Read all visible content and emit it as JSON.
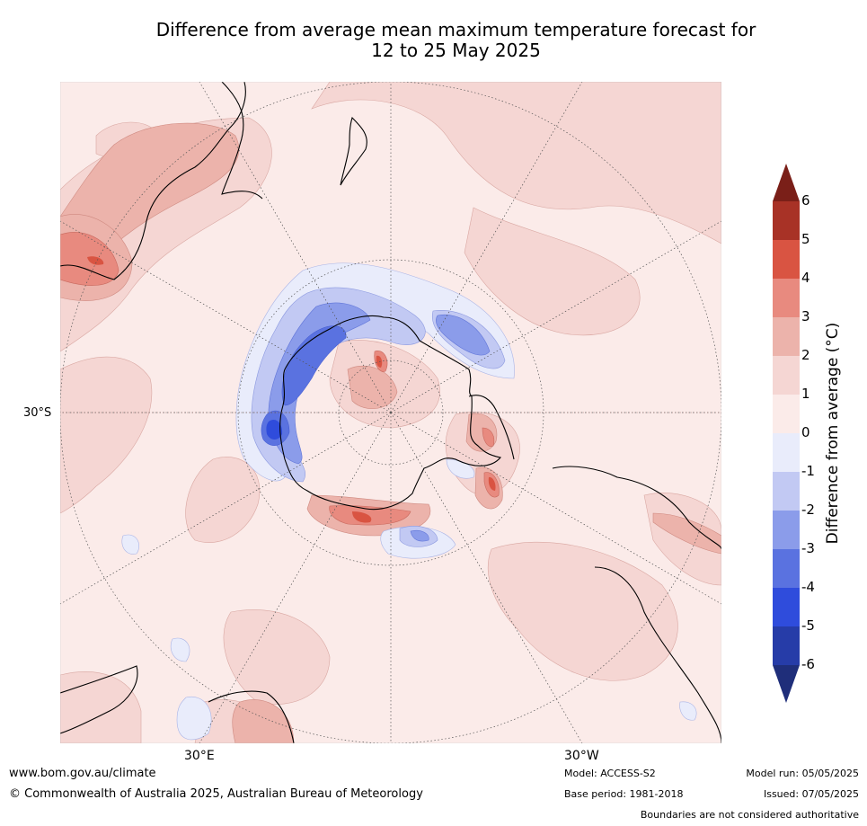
{
  "title": {
    "line1": "Difference from average mean maximum temperature forecast for",
    "line2": "12 to 25 May 2025"
  },
  "map": {
    "projection": "south-polar stereographic",
    "lat_label": "30°S",
    "lon_labels": [
      "30°E",
      "30°W"
    ]
  },
  "colorbar": {
    "title": "Difference from average (°C)",
    "ticks": [
      "6",
      "5",
      "4",
      "3",
      "2",
      "1",
      "0",
      "-1",
      "-2",
      "-3",
      "-4",
      "-5",
      "-6"
    ],
    "colors": [
      "#7a1f18",
      "#a83226",
      "#d95442",
      "#e88a7f",
      "#ecb3ab",
      "#f5d6d3",
      "#fbebe9",
      "#e9ecfb",
      "#c2c9f3",
      "#8b9cea",
      "#5a72e0",
      "#2f4cdc",
      "#263ca8",
      "#1f2e7a"
    ]
  },
  "footer": {
    "website": "www.bom.gov.au/climate",
    "copyright": "© Commonwealth of Australia 2025, Australian Bureau of Meteorology",
    "model": "Model: ACCESS-S2",
    "base_period": "Base period: 1981-2018",
    "model_run": "Model run: 05/05/2025",
    "issued": "Issued: 07/05/2025",
    "disclaimer": "Boundaries are not considered authoritative"
  }
}
